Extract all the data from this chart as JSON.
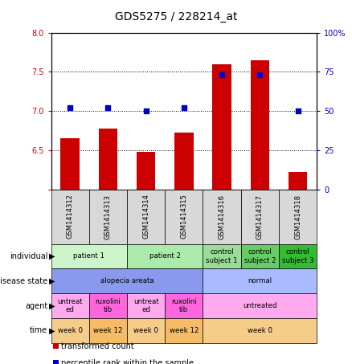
{
  "title": "GDS5275 / 228214_at",
  "samples": [
    "GSM1414312",
    "GSM1414313",
    "GSM1414314",
    "GSM1414315",
    "GSM1414316",
    "GSM1414317",
    "GSM1414318"
  ],
  "bar_values": [
    6.65,
    6.78,
    6.48,
    6.72,
    7.6,
    7.65,
    6.22
  ],
  "dot_values": [
    52,
    52,
    50,
    52,
    73,
    73,
    50
  ],
  "ylim_left": [
    6.0,
    8.0
  ],
  "ylim_right": [
    0,
    100
  ],
  "yticks_left": [
    6.0,
    6.5,
    7.0,
    7.5,
    8.0
  ],
  "yticks_right": [
    0,
    25,
    50,
    75,
    100
  ],
  "ytick_labels_right": [
    "0",
    "25",
    "50",
    "75",
    "100%"
  ],
  "bar_color": "#cc0000",
  "dot_color": "#0000cc",
  "hline_values": [
    6.5,
    7.0,
    7.5
  ],
  "annotation_rows": [
    {
      "label": "individual",
      "cells": [
        {
          "text": "patient 1",
          "span": [
            0,
            1
          ],
          "color": "#ccf5cc"
        },
        {
          "text": "patient 2",
          "span": [
            2,
            3
          ],
          "color": "#aaeaaa"
        },
        {
          "text": "control\nsubject 1",
          "span": [
            4,
            4
          ],
          "color": "#99dd99"
        },
        {
          "text": "control\nsubject 2",
          "span": [
            5,
            5
          ],
          "color": "#66cc66"
        },
        {
          "text": "control\nsubject 3",
          "span": [
            6,
            6
          ],
          "color": "#33bb33"
        }
      ]
    },
    {
      "label": "disease state",
      "cells": [
        {
          "text": "alopecia areata",
          "span": [
            0,
            3
          ],
          "color": "#8899ee"
        },
        {
          "text": "normal",
          "span": [
            4,
            6
          ],
          "color": "#aabbff"
        }
      ]
    },
    {
      "label": "agent",
      "cells": [
        {
          "text": "untreat\ned",
          "span": [
            0,
            0
          ],
          "color": "#ffaaee"
        },
        {
          "text": "ruxolini\ntib",
          "span": [
            1,
            1
          ],
          "color": "#ff66dd"
        },
        {
          "text": "untreat\ned",
          "span": [
            2,
            2
          ],
          "color": "#ffaaee"
        },
        {
          "text": "ruxolini\ntib",
          "span": [
            3,
            3
          ],
          "color": "#ff66dd"
        },
        {
          "text": "untreated",
          "span": [
            4,
            6
          ],
          "color": "#ffaaee"
        }
      ]
    },
    {
      "label": "time",
      "cells": [
        {
          "text": "week 0",
          "span": [
            0,
            0
          ],
          "color": "#f5cc88"
        },
        {
          "text": "week 12",
          "span": [
            1,
            1
          ],
          "color": "#f5bb66"
        },
        {
          "text": "week 0",
          "span": [
            2,
            2
          ],
          "color": "#f5cc88"
        },
        {
          "text": "week 12",
          "span": [
            3,
            3
          ],
          "color": "#f5bb66"
        },
        {
          "text": "week 0",
          "span": [
            4,
            6
          ],
          "color": "#f5cc88"
        }
      ]
    }
  ],
  "legend": [
    {
      "color": "#cc0000",
      "label": "transformed count"
    },
    {
      "color": "#0000cc",
      "label": "percentile rank within the sample"
    }
  ],
  "bg_color": "#ffffff",
  "chart_bg": "#ffffff",
  "tick_color_left": "#cc0000",
  "tick_color_right": "#0000cc"
}
